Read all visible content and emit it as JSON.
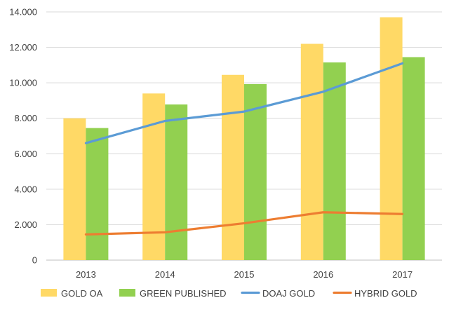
{
  "chart_data": {
    "type": "bar",
    "categories": [
      "2013",
      "2014",
      "2015",
      "2016",
      "2017"
    ],
    "series": [
      {
        "name": "GOLD OA",
        "type": "bar",
        "color": "#FFD966",
        "values": [
          8000,
          9400,
          10450,
          12200,
          13700
        ]
      },
      {
        "name": "GREEN PUBLISHED",
        "type": "bar",
        "color": "#92D050",
        "values": [
          7450,
          8780,
          9930,
          11150,
          11450
        ]
      },
      {
        "name": "DOAJ GOLD",
        "type": "line",
        "color": "#5B9BD5",
        "values": [
          6600,
          7850,
          8380,
          9500,
          11100
        ]
      },
      {
        "name": "HYBRID GOLD",
        "type": "line",
        "color": "#ED7D31",
        "values": [
          1450,
          1570,
          2080,
          2700,
          2600
        ]
      }
    ],
    "ylim": [
      0,
      14000
    ],
    "yticks": [
      0,
      2000,
      4000,
      6000,
      8000,
      10000,
      12000,
      14000
    ],
    "ytick_labels": [
      "0",
      "2.000",
      "4.000",
      "6.000",
      "8.000",
      "10.000",
      "12.000",
      "14.000"
    ],
    "title": "",
    "xlabel": "",
    "ylabel": "",
    "grid": true,
    "legend_position": "bottom"
  }
}
